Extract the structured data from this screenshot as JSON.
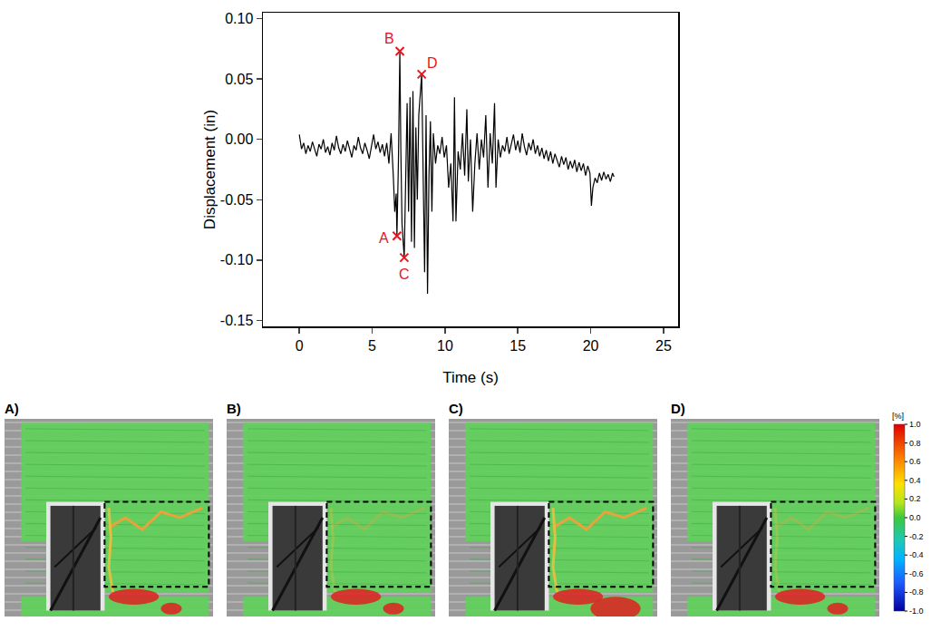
{
  "chart_data": {
    "type": "line",
    "x_label": "Time (s)",
    "y_label": "Displacement (in)",
    "xlim": [
      -2.5,
      26
    ],
    "xticks": [
      0,
      5,
      10,
      15,
      20,
      25
    ],
    "ylim": [
      -0.155,
      0.105
    ],
    "yticks": [
      {
        "value": 0.1,
        "label": "0.10"
      },
      0.05,
      {
        "value": 0,
        "label": "0.00"
      },
      -0.05,
      {
        "value": -0.1,
        "label": "-0.10"
      },
      -0.15
    ],
    "grid": false,
    "series": [
      {
        "color": "#000000",
        "x": [
          0,
          0.15,
          0.3,
          0.45,
          0.6,
          0.75,
          0.9,
          1.05,
          1.2,
          1.35,
          1.5,
          1.65,
          1.8,
          1.95,
          2.1,
          2.25,
          2.4,
          2.55,
          2.7,
          2.85,
          3.0,
          3.15,
          3.3,
          3.45,
          3.6,
          3.75,
          3.9,
          4.05,
          4.2,
          4.35,
          4.5,
          4.65,
          4.8,
          4.95,
          5.1,
          5.25,
          5.4,
          5.55,
          5.7,
          5.85,
          6.0,
          6.15,
          6.3,
          6.45,
          6.55,
          6.65,
          6.7,
          6.8,
          6.9,
          6.97,
          7.05,
          7.2,
          7.3,
          7.4,
          7.5,
          7.6,
          7.7,
          7.8,
          7.9,
          8.0,
          8.1,
          8.2,
          8.4,
          8.5,
          8.6,
          8.7,
          8.8,
          8.9,
          9.0,
          9.1,
          9.2,
          9.35,
          9.5,
          9.65,
          9.8,
          9.95,
          10.1,
          10.25,
          10.4,
          10.55,
          10.65,
          10.75,
          10.9,
          11.05,
          11.2,
          11.35,
          11.5,
          11.6,
          11.75,
          11.9,
          12.05,
          12.2,
          12.35,
          12.5,
          12.65,
          12.8,
          12.95,
          13.1,
          13.25,
          13.4,
          13.5,
          13.65,
          13.8,
          13.95,
          14.1,
          14.25,
          14.4,
          14.55,
          14.7,
          14.85,
          15.0,
          15.15,
          15.3,
          15.45,
          15.6,
          15.75,
          15.9,
          16.05,
          16.2,
          16.35,
          16.5,
          16.65,
          16.8,
          16.95,
          17.1,
          17.25,
          17.4,
          17.55,
          17.7,
          17.85,
          18.0,
          18.15,
          18.3,
          18.45,
          18.6,
          18.75,
          18.9,
          19.05,
          19.2,
          19.35,
          19.5,
          19.65,
          19.8,
          19.95,
          20.05,
          20.15,
          20.3,
          20.45,
          20.6,
          20.75,
          20.9,
          21.05,
          21.2,
          21.35,
          21.5,
          21.6
        ],
        "values": [
          0.004,
          -0.008,
          -0.003,
          -0.012,
          -0.005,
          -0.01,
          -0.002,
          -0.009,
          -0.014,
          -0.004,
          -0.008,
          0.0,
          -0.011,
          -0.006,
          -0.013,
          -0.003,
          -0.009,
          0.003,
          -0.007,
          -0.012,
          -0.004,
          -0.01,
          -0.001,
          -0.008,
          -0.015,
          -0.005,
          -0.009,
          0.002,
          -0.007,
          -0.012,
          -0.003,
          -0.009,
          -0.016,
          -0.006,
          0.004,
          -0.008,
          -0.002,
          -0.011,
          -0.004,
          -0.014,
          -0.003,
          -0.02,
          0.005,
          -0.03,
          -0.06,
          -0.045,
          -0.08,
          -0.02,
          0.073,
          -0.01,
          -0.07,
          -0.098,
          -0.03,
          0.03,
          -0.06,
          0.035,
          -0.085,
          0.04,
          -0.09,
          0.01,
          -0.05,
          0.02,
          0.054,
          -0.04,
          -0.11,
          0.02,
          -0.128,
          -0.03,
          0.015,
          -0.06,
          0.005,
          -0.02,
          -0.005,
          -0.012,
          0.002,
          -0.015,
          -0.005,
          -0.04,
          -0.02,
          -0.068,
          0.035,
          -0.068,
          -0.01,
          -0.025,
          0.005,
          -0.03,
          0.025,
          -0.035,
          0.0,
          -0.06,
          -0.02,
          0.005,
          -0.025,
          0.0,
          -0.015,
          0.02,
          -0.04,
          0.005,
          -0.02,
          0.03,
          -0.04,
          0.0,
          -0.015,
          -0.005,
          -0.01,
          0.002,
          -0.012,
          -0.004,
          0.004,
          -0.009,
          -0.001,
          -0.011,
          0.005,
          -0.006,
          -0.013,
          -0.003,
          -0.009,
          0.0,
          -0.012,
          -0.005,
          -0.014,
          -0.007,
          -0.016,
          -0.009,
          -0.018,
          -0.01,
          -0.02,
          -0.012,
          -0.017,
          -0.023,
          -0.014,
          -0.021,
          -0.015,
          -0.025,
          -0.018,
          -0.024,
          -0.017,
          -0.027,
          -0.019,
          -0.026,
          -0.02,
          -0.03,
          -0.022,
          -0.028,
          -0.055,
          -0.04,
          -0.032,
          -0.036,
          -0.028,
          -0.034,
          -0.027,
          -0.033,
          -0.029,
          -0.035,
          -0.028,
          -0.031
        ]
      }
    ],
    "annotations": [
      {
        "text": "A",
        "x": 6.7,
        "y": -0.08,
        "color": "#e8141c",
        "marker": "x"
      },
      {
        "text": "B",
        "x": 6.9,
        "y": 0.073,
        "color": "#e8141c",
        "marker": "x"
      },
      {
        "text": "C",
        "x": 7.2,
        "y": -0.098,
        "color": "#e8141c",
        "marker": "x"
      },
      {
        "text": "D",
        "x": 8.4,
        "y": 0.054,
        "color": "#e8141c",
        "marker": "x"
      }
    ]
  },
  "images": {
    "panels": [
      "A)",
      "B)",
      "C)",
      "D)"
    ],
    "colorbar": {
      "title": "[%]",
      "range": [
        -1,
        1
      ],
      "ticks": [
        {
          "value": 1,
          "label": "1.0"
        },
        0.8,
        0.6,
        0.4,
        0.2,
        {
          "value": 0,
          "label": "0.0"
        },
        -0.2,
        -0.4,
        -0.6,
        -0.8,
        {
          "value": -1,
          "label": "-1.0"
        }
      ]
    }
  }
}
